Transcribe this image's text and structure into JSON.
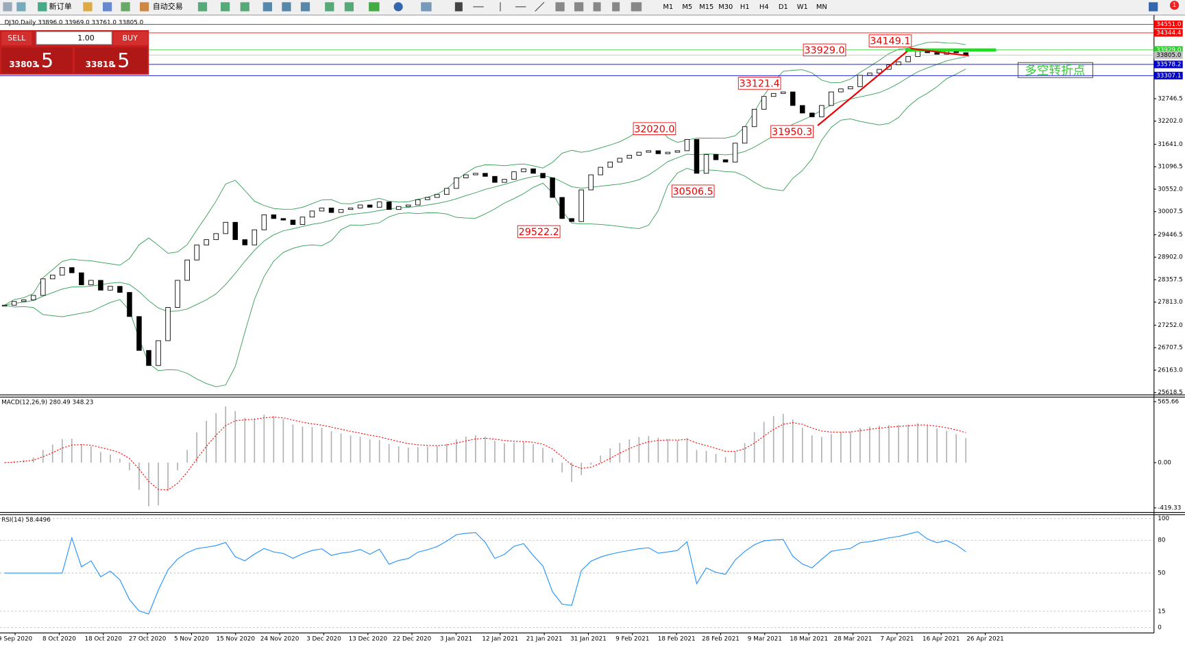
{
  "toolbar": {
    "new_order": "新订单",
    "auto_trading": "自动交易",
    "timeframes": [
      "M1",
      "M5",
      "M15",
      "M30",
      "H1",
      "H4",
      "D1",
      "W1",
      "MN"
    ],
    "notification_count": "1"
  },
  "trade_panel": {
    "sell": "SELL",
    "buy": "BUY",
    "lot": "1.00",
    "sell_main": "33803",
    "sell_frac": ".5",
    "buy_main": "33818",
    "buy_frac": ".5"
  },
  "chart_data": {
    "type": "candlestick",
    "title": "DJ30,Daily  33896.0 33969.0 33761.0 33805.0",
    "close": [
      27738,
      27829,
      27866,
      27975,
      28377,
      28469,
      28651,
      28524,
      28231,
      28341,
      28103,
      28195,
      28048,
      27463,
      26641,
      26275,
      26878,
      27683,
      28341,
      28835,
      29200,
      29328,
      29474,
      29749,
      29328,
      29200,
      29566,
      29931,
      29840,
      29803,
      29694,
      29876,
      30022,
      30095,
      29986,
      30059,
      30095,
      30169,
      30114,
      30242,
      30059,
      30132,
      30169,
      30297,
      30352,
      30425,
      30571,
      30827,
      30900,
      30937,
      30863,
      30717,
      30790,
      30973,
      31046,
      30937,
      30827,
      30352,
      29840,
      29767,
      30535,
      30900,
      31083,
      31211,
      31302,
      31375,
      31448,
      31485,
      31412,
      31448,
      31485,
      31759,
      30937,
      31394,
      31266,
      31211,
      31668,
      32069,
      32491,
      32801,
      32874,
      32911,
      32582,
      32399,
      32307,
      32582,
      32911,
      32984,
      33039,
      33313,
      33368,
      33459,
      33569,
      33642,
      33770,
      33935,
      33862,
      33825,
      33898,
      33862,
      33805
    ],
    "up_color": "#ffffff",
    "down_color": "#000000",
    "band_color": "#2e9b4f",
    "ylim": [
      25582,
      34775
    ],
    "yticks": [
      25618.5,
      {
        "value": 26163,
        "label": "26163.0"
      },
      26707.5,
      {
        "value": 27252,
        "label": "27252.0"
      },
      {
        "value": 27813,
        "label": "27813.0"
      },
      28357.5,
      {
        "value": 28902,
        "label": "28902.0"
      },
      29446.5,
      30007.5,
      {
        "value": 30552,
        "label": "30552.0"
      },
      31096.5,
      {
        "value": 31641,
        "label": "31641.0"
      },
      {
        "value": 32202,
        "label": "32202.0"
      },
      32746.5
    ],
    "levels": [
      {
        "value": 34551,
        "label": "34551.0",
        "color": "#ff0000"
      },
      {
        "value": 34344.4,
        "label": "34344.4",
        "color": "#ff0000"
      },
      {
        "value": 33929,
        "label": "33929.0",
        "color": "#32cd32"
      },
      {
        "value": 33805,
        "label": "33805.0",
        "color": "#c0c0c0"
      },
      {
        "value": 33578.2,
        "label": "33578.2",
        "color": "#0000cd"
      },
      {
        "value": 33307.1,
        "label": "33307.1",
        "color": "#0000cd"
      }
    ],
    "annotations": [
      {
        "value": 34149.1,
        "label": "34149.1"
      },
      {
        "value": 33929,
        "label": "33929.0"
      },
      {
        "value": 33121.4,
        "label": "33121.4"
      },
      {
        "value": 32020,
        "label": "32020.0"
      },
      {
        "value": 31950.3,
        "label": "31950.3"
      },
      {
        "value": 30506.5,
        "label": "30506.5"
      },
      {
        "value": 29522.2,
        "label": "29522.2"
      }
    ],
    "note": "多空转折点",
    "date_labels": [
      "9 Sep 2020",
      "8 Oct 2020",
      "18 Oct 2020",
      "27 Oct 2020",
      "5 Nov 2020",
      "15 Nov 2020",
      "24 Nov 2020",
      "3 Dec 2020",
      "13 Dec 2020",
      "22 Dec 2020",
      "3 Jan 2021",
      "12 Jan 2021",
      "21 Jan 2021",
      "31 Jan 2021",
      "9 Feb 2021",
      "18 Feb 2021",
      "28 Feb 2021",
      "9 Mar 2021",
      "18 Mar 2021",
      "28 Mar 2021",
      "7 Apr 2021",
      "16 Apr 2021",
      "26 Apr 2021"
    ],
    "macd": {
      "title": "MACD(12,26,9) 280.49 348.23",
      "ylim": [
        -419.33,
        565.66
      ],
      "yticks": [
        -419.33,
        {
          "value": 0,
          "label": "0.00"
        },
        565.66
      ],
      "hist_color": "#b0b0b0",
      "signal_color": "#ff0000"
    },
    "rsi": {
      "title": "RSI(14) 58.4496",
      "ylim": [
        0,
        100
      ],
      "yticks": [
        0,
        15,
        50,
        80,
        100
      ],
      "color": "#1e90ff"
    }
  }
}
